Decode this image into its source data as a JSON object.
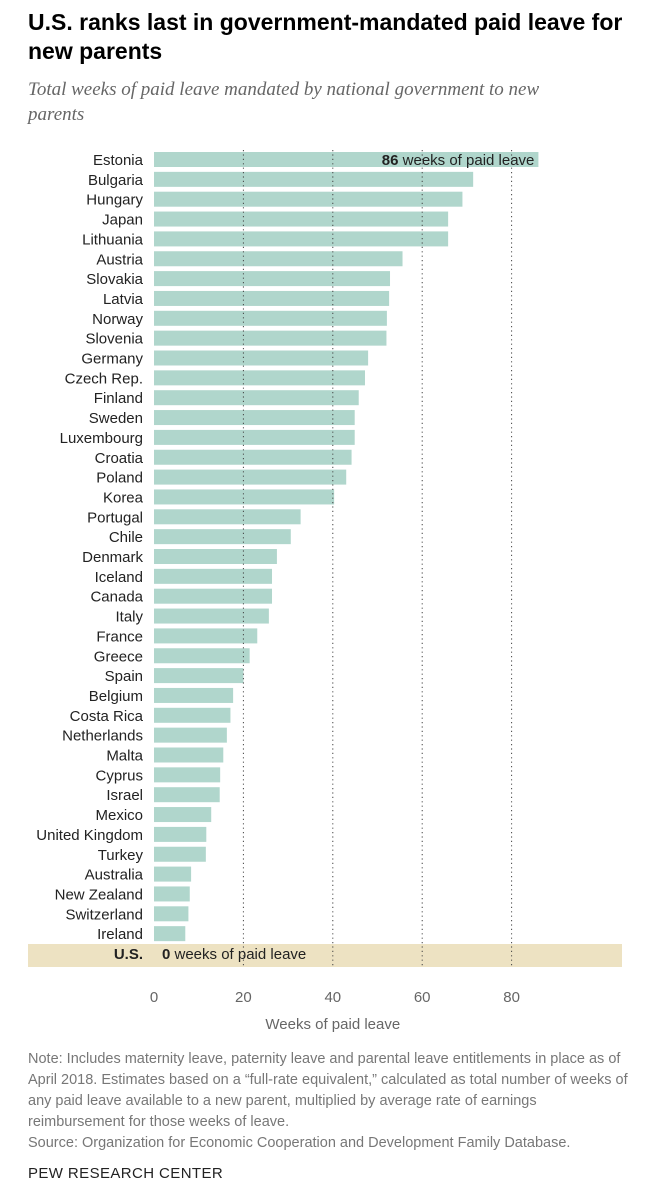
{
  "title": "U.S. ranks last in government-mandated paid leave for new parents",
  "subtitle": "Total weeks of paid leave mandated by national government to new parents",
  "chart_data": {
    "type": "bar",
    "orientation": "horizontal",
    "categories": [
      "Estonia",
      "Bulgaria",
      "Hungary",
      "Japan",
      "Lithuania",
      "Austria",
      "Slovakia",
      "Latvia",
      "Norway",
      "Slovenia",
      "Germany",
      "Czech Rep.",
      "Finland",
      "Sweden",
      "Luxembourg",
      "Croatia",
      "Poland",
      "Korea",
      "Portugal",
      "Chile",
      "Denmark",
      "Iceland",
      "Canada",
      "Italy",
      "France",
      "Greece",
      "Spain",
      "Belgium",
      "Costa Rica",
      "Netherlands",
      "Malta",
      "Cyprus",
      "Israel",
      "Mexico",
      "United Kingdom",
      "Turkey",
      "Australia",
      "New Zealand",
      "Switzerland",
      "Ireland",
      "U.S."
    ],
    "values": [
      86,
      71.4,
      69,
      65.8,
      65.8,
      55.6,
      52.8,
      52.6,
      52.1,
      52,
      47.9,
      47.2,
      45.8,
      44.9,
      44.9,
      44.2,
      43,
      40.3,
      32.8,
      30.6,
      27.5,
      26.4,
      26.4,
      25.7,
      23.1,
      21.4,
      20,
      17.7,
      17.1,
      16.3,
      15.5,
      14.8,
      14.7,
      12.8,
      11.7,
      11.6,
      8.3,
      8,
      7.7,
      7,
      0
    ],
    "highlight": {
      "category": "U.S.",
      "value_label": "0",
      "text": "weeks of paid leave"
    },
    "top_annotation": {
      "value_label": "86",
      "text": "weeks of paid leave"
    },
    "xlabel": "Weeks of paid leave",
    "xticks": [
      "0",
      "20",
      "40",
      "60",
      "80"
    ],
    "xlim": [
      0,
      100
    ],
    "gridlines": "dotted at 20, 40, 60, 80",
    "colors": {
      "bar": "#b0d6cc",
      "highlight_band": "#ede2c2",
      "grid": "#444444"
    }
  },
  "note": "Note: Includes maternity leave, paternity leave and parental leave entitlements in place as of April 2018. Estimates based on a “full-rate equivalent,” calculated as total number of weeks of any paid leave available to a new parent, multiplied by average rate of earnings reimbursement for those weeks of leave.",
  "source": "Source: Organization for Economic Cooperation and Development Family Database.",
  "brand": "PEW RESEARCH CENTER"
}
